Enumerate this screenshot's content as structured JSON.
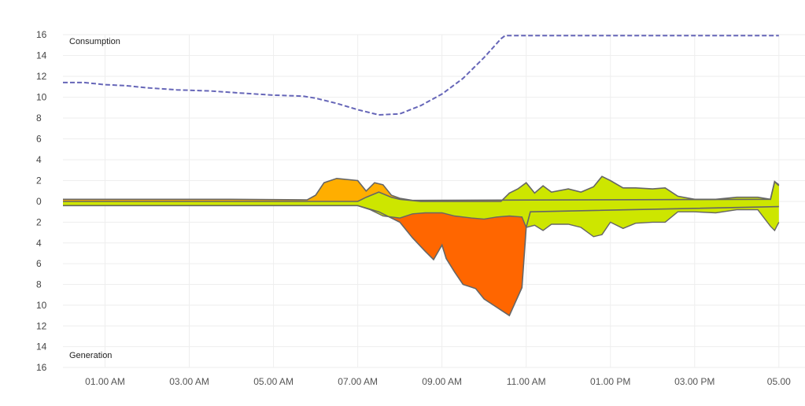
{
  "chart_data": {
    "type": "area",
    "title": "",
    "top_label": "Consumption",
    "bottom_label": "Generation",
    "y_ticks_top": [
      "16",
      "14",
      "12",
      "10",
      "8",
      "6",
      "4",
      "2"
    ],
    "y_tick_zero": "0",
    "y_ticks_bottom": [
      "2",
      "4",
      "6",
      "8",
      "10",
      "12",
      "14",
      "16"
    ],
    "ylim": [
      -16,
      16
    ],
    "x_ticks": [
      "01.00 AM",
      "03.00 AM",
      "05.00 AM",
      "07.00 AM",
      "09.00 AM",
      "11.00 AM",
      "01.00 PM",
      "03.00 PM",
      "05.00"
    ],
    "x_tick_hours": [
      1,
      3,
      5,
      7,
      9,
      11,
      13,
      15,
      17
    ],
    "xlim_hours": [
      0,
      17.2
    ],
    "grid": true,
    "colors": {
      "consumption_line": "#6666b8",
      "orange": "#ffae00",
      "green": "#cde600",
      "red": "#ff6600",
      "outline": "#666666",
      "grid": "#eeeeee"
    },
    "series": [
      {
        "role": "consumption",
        "points": [
          [
            0.0,
            11.4
          ],
          [
            0.5,
            11.4
          ],
          [
            1.0,
            11.2
          ],
          [
            1.5,
            11.1
          ],
          [
            2.0,
            10.9
          ],
          [
            2.7,
            10.7
          ],
          [
            3.5,
            10.6
          ],
          [
            4.2,
            10.4
          ],
          [
            5.0,
            10.2
          ],
          [
            5.7,
            10.1
          ],
          [
            6.0,
            9.9
          ],
          [
            6.5,
            9.4
          ],
          [
            7.0,
            8.8
          ],
          [
            7.5,
            8.3
          ],
          [
            8.0,
            8.4
          ],
          [
            8.5,
            9.2
          ],
          [
            9.0,
            10.3
          ],
          [
            9.5,
            11.8
          ],
          [
            10.0,
            13.8
          ],
          [
            10.4,
            15.6
          ],
          [
            10.5,
            15.9
          ],
          [
            17.0,
            15.9
          ]
        ]
      },
      {
        "role": "orange",
        "points": [
          [
            0.0,
            0.2
          ],
          [
            2.0,
            0.2
          ],
          [
            4.0,
            0.2
          ],
          [
            5.8,
            0.15
          ],
          [
            6.0,
            0.6
          ],
          [
            6.2,
            1.8
          ],
          [
            6.5,
            2.2
          ],
          [
            7.0,
            2.0
          ],
          [
            7.2,
            1.0
          ],
          [
            7.4,
            1.8
          ],
          [
            7.6,
            1.6
          ],
          [
            7.8,
            0.6
          ],
          [
            8.0,
            0.3
          ],
          [
            8.3,
            0.1
          ],
          [
            16.8,
            0.2
          ],
          [
            16.9,
            1.9
          ],
          [
            17.0,
            1.5
          ]
        ]
      },
      {
        "role": "green",
        "points": [
          [
            0.0,
            0.0
          ],
          [
            7.0,
            0.0
          ],
          [
            7.2,
            0.4
          ],
          [
            7.5,
            0.9
          ],
          [
            7.8,
            0.4
          ],
          [
            8.0,
            0.2
          ],
          [
            8.5,
            0.0
          ],
          [
            10.4,
            0.0
          ],
          [
            10.6,
            0.8
          ],
          [
            10.8,
            1.2
          ],
          [
            11.0,
            1.8
          ],
          [
            11.2,
            0.8
          ],
          [
            11.4,
            1.5
          ],
          [
            11.6,
            0.9
          ],
          [
            12.0,
            1.2
          ],
          [
            12.3,
            0.9
          ],
          [
            12.6,
            1.4
          ],
          [
            12.8,
            2.4
          ],
          [
            13.0,
            2.0
          ],
          [
            13.3,
            1.3
          ],
          [
            13.6,
            1.3
          ],
          [
            14.0,
            1.2
          ],
          [
            14.3,
            1.3
          ],
          [
            14.6,
            0.5
          ],
          [
            15.0,
            0.2
          ],
          [
            15.5,
            0.2
          ],
          [
            16.0,
            0.4
          ],
          [
            16.5,
            0.4
          ],
          [
            16.8,
            0.2
          ],
          [
            16.9,
            1.9
          ],
          [
            17.0,
            1.6
          ]
        ]
      },
      {
        "role": "red",
        "points": [
          [
            0.0,
            -0.4
          ],
          [
            7.0,
            -0.4
          ],
          [
            7.5,
            -1.0
          ],
          [
            8.0,
            -2.0
          ],
          [
            8.3,
            -3.5
          ],
          [
            8.6,
            -4.8
          ],
          [
            8.8,
            -5.6
          ],
          [
            9.0,
            -4.2
          ],
          [
            9.1,
            -5.5
          ],
          [
            9.3,
            -6.8
          ],
          [
            9.5,
            -8.0
          ],
          [
            9.8,
            -8.4
          ],
          [
            10.0,
            -9.4
          ],
          [
            10.3,
            -10.2
          ],
          [
            10.6,
            -11.0
          ],
          [
            10.9,
            -8.3
          ],
          [
            11.0,
            -2.5
          ],
          [
            11.1,
            -1.0
          ],
          [
            17.0,
            -0.5
          ]
        ]
      },
      {
        "role": "green_generation",
        "points": [
          [
            0.0,
            -0.4
          ],
          [
            7.0,
            -0.4
          ],
          [
            7.3,
            -0.8
          ],
          [
            7.6,
            -1.4
          ],
          [
            8.0,
            -1.6
          ],
          [
            8.3,
            -1.2
          ],
          [
            8.6,
            -1.1
          ],
          [
            9.0,
            -1.1
          ],
          [
            9.3,
            -1.4
          ],
          [
            9.7,
            -1.6
          ],
          [
            10.0,
            -1.7
          ],
          [
            10.3,
            -1.5
          ],
          [
            10.6,
            -1.4
          ],
          [
            10.9,
            -1.5
          ],
          [
            11.0,
            -2.5
          ],
          [
            11.2,
            -2.3
          ],
          [
            11.4,
            -2.8
          ],
          [
            11.6,
            -2.2
          ],
          [
            12.0,
            -2.2
          ],
          [
            12.3,
            -2.5
          ],
          [
            12.6,
            -3.4
          ],
          [
            12.8,
            -3.2
          ],
          [
            13.0,
            -2.0
          ],
          [
            13.3,
            -2.6
          ],
          [
            13.6,
            -2.1
          ],
          [
            14.0,
            -2.0
          ],
          [
            14.3,
            -2.0
          ],
          [
            14.6,
            -1.0
          ],
          [
            15.0,
            -1.0
          ],
          [
            15.5,
            -1.1
          ],
          [
            16.0,
            -0.8
          ],
          [
            16.5,
            -0.8
          ],
          [
            16.8,
            -2.4
          ],
          [
            16.9,
            -2.8
          ],
          [
            17.0,
            -2.0
          ]
        ]
      }
    ]
  }
}
